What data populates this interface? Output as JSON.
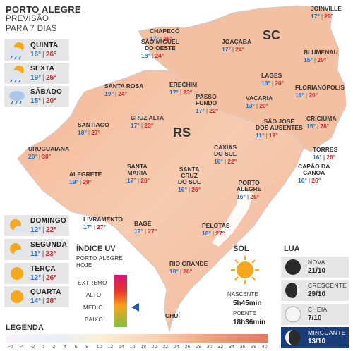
{
  "header": {
    "title": "PORTO ALEGRE",
    "subtitle1": "PREVISÃO",
    "subtitle2": "PARA 7 DIAS"
  },
  "forecast": [
    {
      "day": "QUINTA",
      "min": "16°",
      "max": "26°",
      "icon": "sun-cloud-rain-icon"
    },
    {
      "day": "SEXTA",
      "min": "19°",
      "max": "25°",
      "icon": "sun-cloud-rain-icon"
    },
    {
      "day": "SÁBADO",
      "min": "15°",
      "max": "20°",
      "icon": "cloud-rain-icon"
    },
    {
      "day": "DOMINGO",
      "min": "12°",
      "max": "22°",
      "icon": "sun-cloud-icon"
    },
    {
      "day": "SEGUNDA",
      "min": "11°",
      "max": "23°",
      "icon": "sun-cloud-icon"
    },
    {
      "day": "TERÇA",
      "min": "12°",
      "max": "26°",
      "icon": "sun-icon"
    },
    {
      "day": "QUARTA",
      "min": "14°",
      "max": "28°",
      "icon": "sun-icon"
    }
  ],
  "states": {
    "rs": "RS",
    "sc": "SC"
  },
  "cities": [
    {
      "name": "CHAPECÓ",
      "min": "17°",
      "max": "25°"
    },
    {
      "name": "SÃO MIGUEL\nDO OESTE",
      "min": "18°",
      "max": "24°"
    },
    {
      "name": "JOAÇABA",
      "min": "17°",
      "max": "24°"
    },
    {
      "name": "JOINVILLE",
      "min": "17°",
      "max": "28°"
    },
    {
      "name": "BLUMENAU",
      "min": "15°",
      "max": "29°"
    },
    {
      "name": "LAGES",
      "min": "13°",
      "max": "20°"
    },
    {
      "name": "FLORIANÓPOLIS",
      "min": "16°",
      "max": "26°"
    },
    {
      "name": "SANTA ROSA",
      "min": "19°",
      "max": "24°"
    },
    {
      "name": "ERECHIM",
      "min": "17°",
      "max": "23°"
    },
    {
      "name": "PASSO\nFUNDO",
      "min": "17°",
      "max": "22°"
    },
    {
      "name": "VACARIA",
      "min": "13°",
      "max": "20°"
    },
    {
      "name": "CRUZ ALTA",
      "min": "17°",
      "max": "23°"
    },
    {
      "name": "SÃO JOSÉ\nDOS AUSENTES",
      "min": "11°",
      "max": "19°"
    },
    {
      "name": "CRICIÚMA",
      "min": "15°",
      "max": "28°"
    },
    {
      "name": "SANTIAGO",
      "min": "18°",
      "max": "27°"
    },
    {
      "name": "TORRES",
      "min": "16°",
      "max": "26°"
    },
    {
      "name": "URUGUAIANA",
      "min": "20°",
      "max": "30°"
    },
    {
      "name": "CAXIAS\nDO SUL",
      "min": "16°",
      "max": "22°"
    },
    {
      "name": "CAPÃO DA\nCANOA",
      "min": "16°",
      "max": "26°"
    },
    {
      "name": "ALEGRETE",
      "min": "19°",
      "max": "29°"
    },
    {
      "name": "SANTA\nMARIA",
      "min": "17°",
      "max": "26°"
    },
    {
      "name": "SANTA\nCRUZ\nDO SUL",
      "min": "16°",
      "max": "26°"
    },
    {
      "name": "PORTO\nALEGRE",
      "min": "16°",
      "max": "26°"
    },
    {
      "name": "LIVRAMENTO",
      "min": "17°",
      "max": "27°"
    },
    {
      "name": "BAGÉ",
      "min": "17°",
      "max": "27°"
    },
    {
      "name": "PELOTAS",
      "min": "18°",
      "max": "27°"
    },
    {
      "name": "RIO GRANDE",
      "min": "18°",
      "max": "26°"
    },
    {
      "name": "CHUÍ",
      "min": "",
      "max": ""
    }
  ],
  "uv": {
    "title": "ÍNDICE UV",
    "sub1": "PORTO ALEGRE",
    "sub2": "HOJE",
    "levels": [
      "EXTREMO",
      "ALTO",
      "MÉDIO",
      "BAIXO"
    ],
    "current": "MÉDIO"
  },
  "sun": {
    "title": "SOL",
    "rise_label": "NASCENTE",
    "rise": "5h45min",
    "set_label": "POENTE",
    "set": "18h36min"
  },
  "moon": {
    "title": "LUA",
    "phases": [
      {
        "phase": "NOVA",
        "date": "21/10"
      },
      {
        "phase": "CRESCENTE",
        "date": "29/10"
      },
      {
        "phase": "CHEIA",
        "date": "7/10"
      },
      {
        "phase": "MINGUANTE",
        "date": "13/10"
      }
    ]
  },
  "legend": {
    "title": "LEGENDA",
    "values": [
      "-6",
      "-4",
      "-2",
      "0",
      "2",
      "4",
      "6",
      "8",
      "10",
      "12",
      "14",
      "16",
      "18",
      "20",
      "22",
      "24",
      "26",
      "28",
      "30",
      "32",
      "34",
      "36",
      "38",
      "40"
    ]
  },
  "colors": {
    "min": "#2a6ebd",
    "max": "#d0272a",
    "map_warm": "#f2b08c",
    "map_light": "#f7d2b6"
  }
}
